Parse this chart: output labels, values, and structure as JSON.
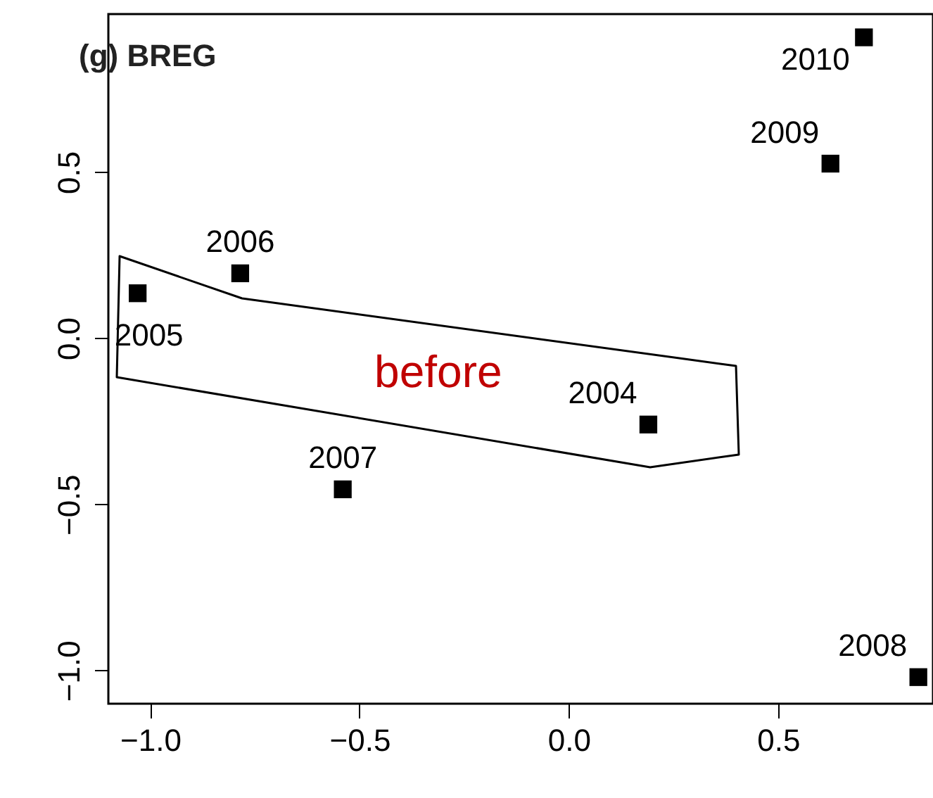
{
  "chart_data": {
    "type": "scatter",
    "title": "(g) BREG",
    "xlim": [
      -1.1,
      0.87
    ],
    "ylim": [
      -1.1,
      0.975
    ],
    "xticks": [
      {
        "value": -1,
        "label": "−1.0"
      },
      {
        "value": -0.5,
        "label": "−0.5"
      },
      {
        "value": 0,
        "label": "0.0"
      },
      0.5
    ],
    "yticks": [
      {
        "value": -1,
        "label": "−1.0"
      },
      {
        "value": -0.5,
        "label": "−0.5"
      },
      {
        "value": 0,
        "label": "0.0"
      },
      0.5
    ],
    "grid": false,
    "marker": "square",
    "series": [
      {
        "color": "#000000",
        "x": [
          0.19,
          -1.03,
          -0.785,
          -0.54,
          0.835,
          0.625,
          0.705
        ],
        "values": [
          -0.26,
          0.135,
          0.195,
          -0.455,
          -1.02,
          0.525,
          0.905
        ]
      }
    ],
    "annotations": [
      {
        "text": "2004",
        "x": 0.19,
        "y": -0.26
      },
      {
        "text": "2005",
        "x": -1.03,
        "y": 0.135
      },
      {
        "text": "2006",
        "x": -0.785,
        "y": 0.195
      },
      {
        "text": "2007",
        "x": -0.54,
        "y": -0.455
      },
      {
        "text": "2008",
        "x": 0.835,
        "y": -1.02
      },
      {
        "text": "2009",
        "x": 0.625,
        "y": 0.525
      },
      {
        "text": "2010",
        "x": 0.705,
        "y": 0.905
      },
      "before"
    ]
  }
}
